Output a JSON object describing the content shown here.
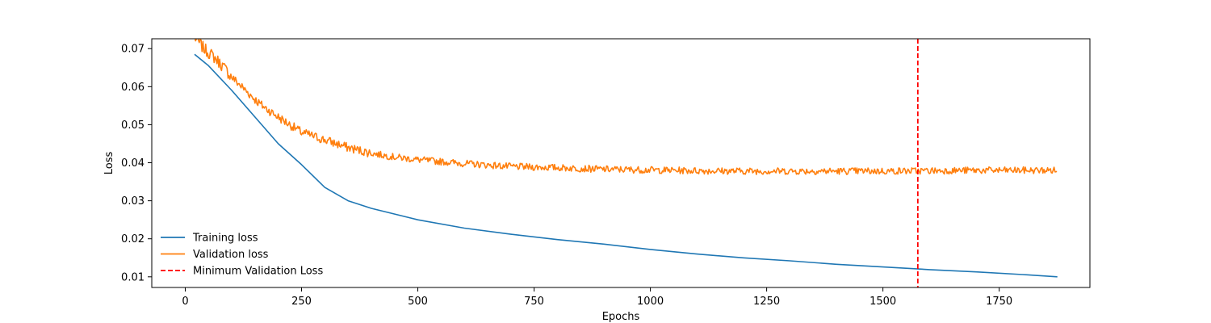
{
  "chart_data": {
    "type": "line",
    "title": "",
    "xlabel": "Epochs",
    "ylabel": "Loss",
    "xlim": [
      -72,
      1945
    ],
    "ylim": [
      0.0072,
      0.0726
    ],
    "xticks": [
      0,
      250,
      500,
      750,
      1000,
      1250,
      1500,
      1750
    ],
    "yticks": [
      0.01,
      0.02,
      0.03,
      0.04,
      0.05,
      0.06,
      0.07
    ],
    "x_tick_labels": [
      "0",
      "250",
      "500",
      "750",
      "1000",
      "1250",
      "1500",
      "1750"
    ],
    "y_tick_labels": [
      "0.01",
      "0.02",
      "0.03",
      "0.04",
      "0.05",
      "0.06",
      "0.07"
    ],
    "legend_position": "lower-left",
    "grid": false,
    "series": [
      {
        "name": "Training loss",
        "color": "#1f77b4",
        "style": "solid",
        "x": [
          20,
          50,
          100,
          150,
          200,
          250,
          300,
          350,
          400,
          500,
          600,
          700,
          800,
          900,
          1000,
          1100,
          1200,
          1300,
          1400,
          1500,
          1600,
          1700,
          1800,
          1875
        ],
        "y": [
          0.0685,
          0.0655,
          0.059,
          0.052,
          0.045,
          0.0395,
          0.0335,
          0.03,
          0.028,
          0.025,
          0.0228,
          0.0212,
          0.0198,
          0.0186,
          0.0172,
          0.016,
          0.015,
          0.0142,
          0.0133,
          0.0126,
          0.0119,
          0.0113,
          0.0106,
          0.01
        ]
      },
      {
        "name": "Validation loss",
        "color": "#ff7f0e",
        "style": "solid",
        "x": [
          20,
          40,
          60,
          80,
          100,
          130,
          160,
          200,
          250,
          300,
          350,
          400,
          450,
          500,
          600,
          700,
          800,
          900,
          1000,
          1100,
          1200,
          1300,
          1400,
          1500,
          1600,
          1700,
          1800,
          1875
        ],
        "y": [
          0.073,
          0.07,
          0.068,
          0.0655,
          0.0625,
          0.059,
          0.0555,
          0.052,
          0.048,
          0.046,
          0.044,
          0.0425,
          0.0415,
          0.0408,
          0.0398,
          0.039,
          0.0387,
          0.0383,
          0.0381,
          0.0379,
          0.0378,
          0.0378,
          0.0378,
          0.0378,
          0.0379,
          0.038,
          0.038,
          0.038
        ]
      }
    ],
    "vlines": [
      {
        "name": "Minimum Validation Loss",
        "x": 1575,
        "color": "#ff0000",
        "style": "dashed"
      }
    ]
  }
}
